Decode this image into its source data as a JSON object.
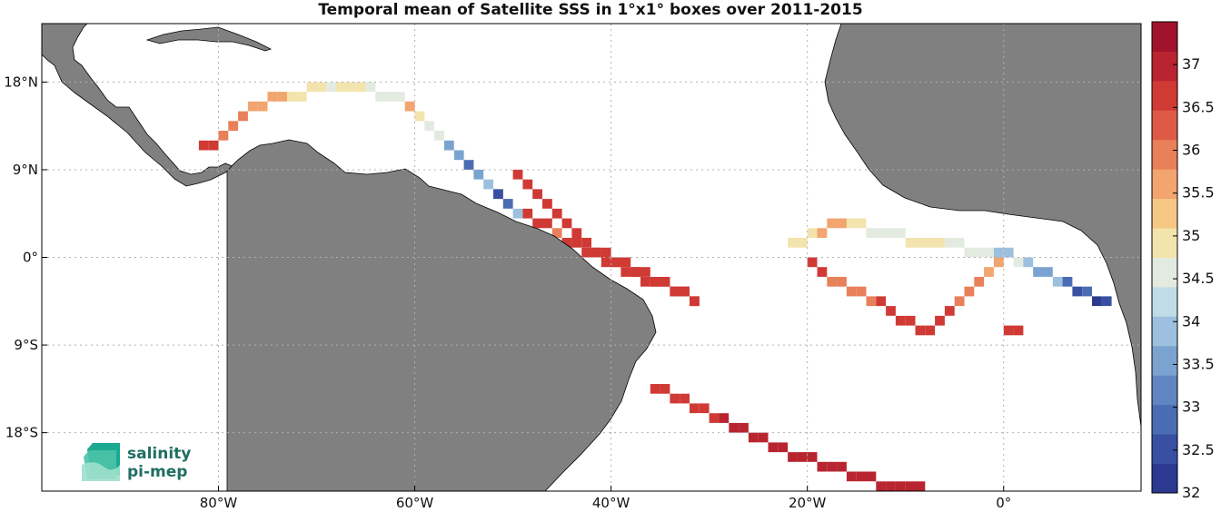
{
  "chart_data": {
    "type": "heatmap",
    "title": "Temporal mean of Satellite SSS in 1°x1° boxes over 2011-2015",
    "xlim": [
      -98,
      14
    ],
    "ylim": [
      -24,
      24
    ],
    "x_ticks": [
      -80,
      -60,
      -40,
      -20,
      0
    ],
    "x_tick_labels": [
      "80°W",
      "60°W",
      "40°W",
      "20°W",
      "0°"
    ],
    "y_ticks": [
      18,
      9,
      0,
      -9,
      -18
    ],
    "y_tick_labels": [
      "18°N",
      "9°N",
      "0°",
      "9°S",
      "18°S"
    ],
    "grid": true,
    "colorbar": {
      "min": 32,
      "max": 37.5,
      "ticks": [
        32,
        32.5,
        33,
        33.5,
        34,
        34.5,
        35,
        35.5,
        36,
        36.5,
        37
      ],
      "tick_labels": [
        "32",
        "32.5",
        "33",
        "33.5",
        "34",
        "34.5",
        "35",
        "35.5",
        "36",
        "36.5",
        "37"
      ],
      "colors": [
        "#2b3990",
        "#3850a2",
        "#4a6cb3",
        "#5f86c0",
        "#7ba3cf",
        "#9cc0dd",
        "#c0dce6",
        "#e3ebe0",
        "#f3e3ad",
        "#f6c883",
        "#f2a56f",
        "#e8805a",
        "#de5a46",
        "#d03a35",
        "#b8242f",
        "#a0132b"
      ]
    },
    "series": [
      {
        "lon": [
          -82,
          -81,
          -80,
          -79,
          -78,
          -77,
          -76,
          -75,
          -74,
          -73,
          -72,
          -71,
          -70,
          -69,
          -68,
          -67,
          -66,
          -65,
          -64,
          -63,
          -62,
          -61,
          -60,
          -59,
          -58,
          -57,
          -56,
          -55,
          -54,
          -53,
          -52
        ],
        "sss": [
          36.5,
          36.5,
          36,
          36,
          36,
          35.5,
          35.5,
          35.5,
          35.5,
          35,
          35,
          35,
          35,
          34.5,
          35,
          35,
          35,
          34.5,
          34.5,
          34.5,
          34.5,
          35.5,
          35,
          34.5,
          34.5,
          33.5,
          33.5,
          33,
          33.5,
          34,
          35.5
        ],
        "lat": [
          11,
          11,
          12,
          13,
          14,
          15,
          15,
          16,
          16,
          16,
          16,
          17,
          17,
          17,
          17,
          17,
          17,
          17,
          16,
          16,
          16,
          15,
          14,
          13,
          12,
          11,
          10,
          9,
          8,
          7,
          6
        ]
      },
      {
        "lon": [
          -52,
          -51,
          -50,
          -49,
          -48,
          -47,
          -46,
          -45,
          -44,
          -43,
          -42,
          -41,
          -40,
          -39,
          -38,
          -37,
          -36,
          -35,
          -34,
          -33,
          -32
        ],
        "sss": [
          32.5,
          33,
          34,
          36.5,
          36.5,
          36.5,
          36,
          36.5,
          36.5,
          36.5,
          36.5,
          36.5,
          36.5,
          36.5,
          36.5,
          36.5,
          36.5,
          36.5,
          36.5,
          36.5,
          36.5
        ],
        "lat": [
          6,
          5,
          4,
          4,
          3,
          3,
          2,
          1,
          1,
          0,
          0,
          0,
          -1,
          -1,
          -2,
          -2,
          -3,
          -3,
          -4,
          -4,
          -5
        ]
      },
      {
        "lon": [
          -50,
          -49,
          -48,
          -47,
          -46,
          -45,
          -44,
          -43,
          -42,
          -41,
          -40,
          -39,
          -38,
          -37,
          -36,
          -35,
          -34,
          -33,
          -32
        ],
        "sss": [
          36.5,
          36.5,
          36.5,
          36.5,
          36.5,
          36.5,
          36.5,
          36.5,
          36.5,
          36.5,
          36.5,
          36.5,
          36.5,
          36.5,
          36.5,
          36.5,
          36.5,
          36.5,
          36.5
        ],
        "lat": [
          8,
          7,
          6,
          5,
          4,
          3,
          2,
          1,
          0,
          -1,
          -1,
          -2,
          -2,
          -3,
          -3,
          -3,
          -4,
          -4,
          -5
        ]
      },
      {
        "lon": [
          -36,
          -35,
          -34,
          -33,
          -32,
          -31,
          -30,
          -29,
          -28,
          -27,
          -26,
          -25,
          -24,
          -23,
          -22,
          -21,
          -20,
          -19,
          -18,
          -17,
          -16,
          -15,
          -14,
          -13,
          -12,
          -11,
          -10,
          -9
        ],
        "sss": [
          36.5,
          36.5,
          36.5,
          36.5,
          36.5,
          36.5,
          36.5,
          37,
          37,
          37,
          37,
          37,
          37,
          37,
          37,
          37,
          37,
          37,
          37,
          37,
          37,
          37,
          37,
          37,
          37,
          37,
          37,
          37
        ],
        "lat": [
          -14,
          -14,
          -15,
          -15,
          -16,
          -16,
          -17,
          -17,
          -18,
          -18,
          -19,
          -19,
          -20,
          -20,
          -21,
          -21,
          -21,
          -22,
          -22,
          -22,
          -23,
          -23,
          -23,
          -24,
          -24,
          -24,
          -24,
          -24
        ]
      },
      {
        "lon": [
          -20,
          -19,
          -18,
          -17,
          -16,
          -15,
          -14,
          -13,
          -12,
          -11,
          -10,
          -9,
          -8,
          -7,
          -6,
          -5,
          -4,
          -3,
          -2,
          -1,
          0,
          1
        ],
        "sss": [
          36.5,
          36.5,
          36,
          36,
          36,
          36,
          36,
          36.5,
          36.5,
          36.5,
          36.5,
          36.5,
          36.5,
          36.5,
          36.5,
          36,
          36,
          36,
          35.5,
          35.5,
          36.5,
          36.5
        ],
        "lat": [
          -1,
          -2,
          -3,
          -3,
          -4,
          -4,
          -5,
          -5,
          -6,
          -7,
          -7,
          -8,
          -8,
          -7,
          -6,
          -5,
          -4,
          -3,
          -2,
          -1,
          -8,
          -8
        ]
      },
      {
        "lon": [
          -22,
          -21,
          -20,
          -19,
          -18,
          -17,
          -16,
          -15,
          -14,
          -13,
          -12,
          -11,
          -10,
          -9,
          -8,
          -7,
          -6,
          -5,
          -4,
          -3,
          -2,
          -1,
          0,
          1,
          2,
          3,
          4,
          5,
          6,
          7,
          8,
          9,
          10
        ],
        "sss": [
          35,
          35,
          35,
          35.5,
          35.5,
          35.5,
          35,
          35,
          34.5,
          34.5,
          34.5,
          34.5,
          35,
          35,
          35,
          35,
          34.5,
          34.5,
          34.5,
          34.5,
          34.5,
          34,
          34,
          34.5,
          34,
          33.5,
          33.5,
          34,
          33,
          32.5,
          33,
          32,
          32.5
        ],
        "lat": [
          1,
          1,
          2,
          2,
          3,
          3,
          3,
          3,
          2,
          2,
          2,
          2,
          1,
          1,
          1,
          1,
          1,
          1,
          0,
          0,
          0,
          0,
          0,
          -1,
          -1,
          -2,
          -2,
          -3,
          -3,
          -4,
          -4,
          -5,
          -5
        ]
      }
    ]
  },
  "logo": {
    "line1": "salinity",
    "line2": "pi-mep"
  }
}
